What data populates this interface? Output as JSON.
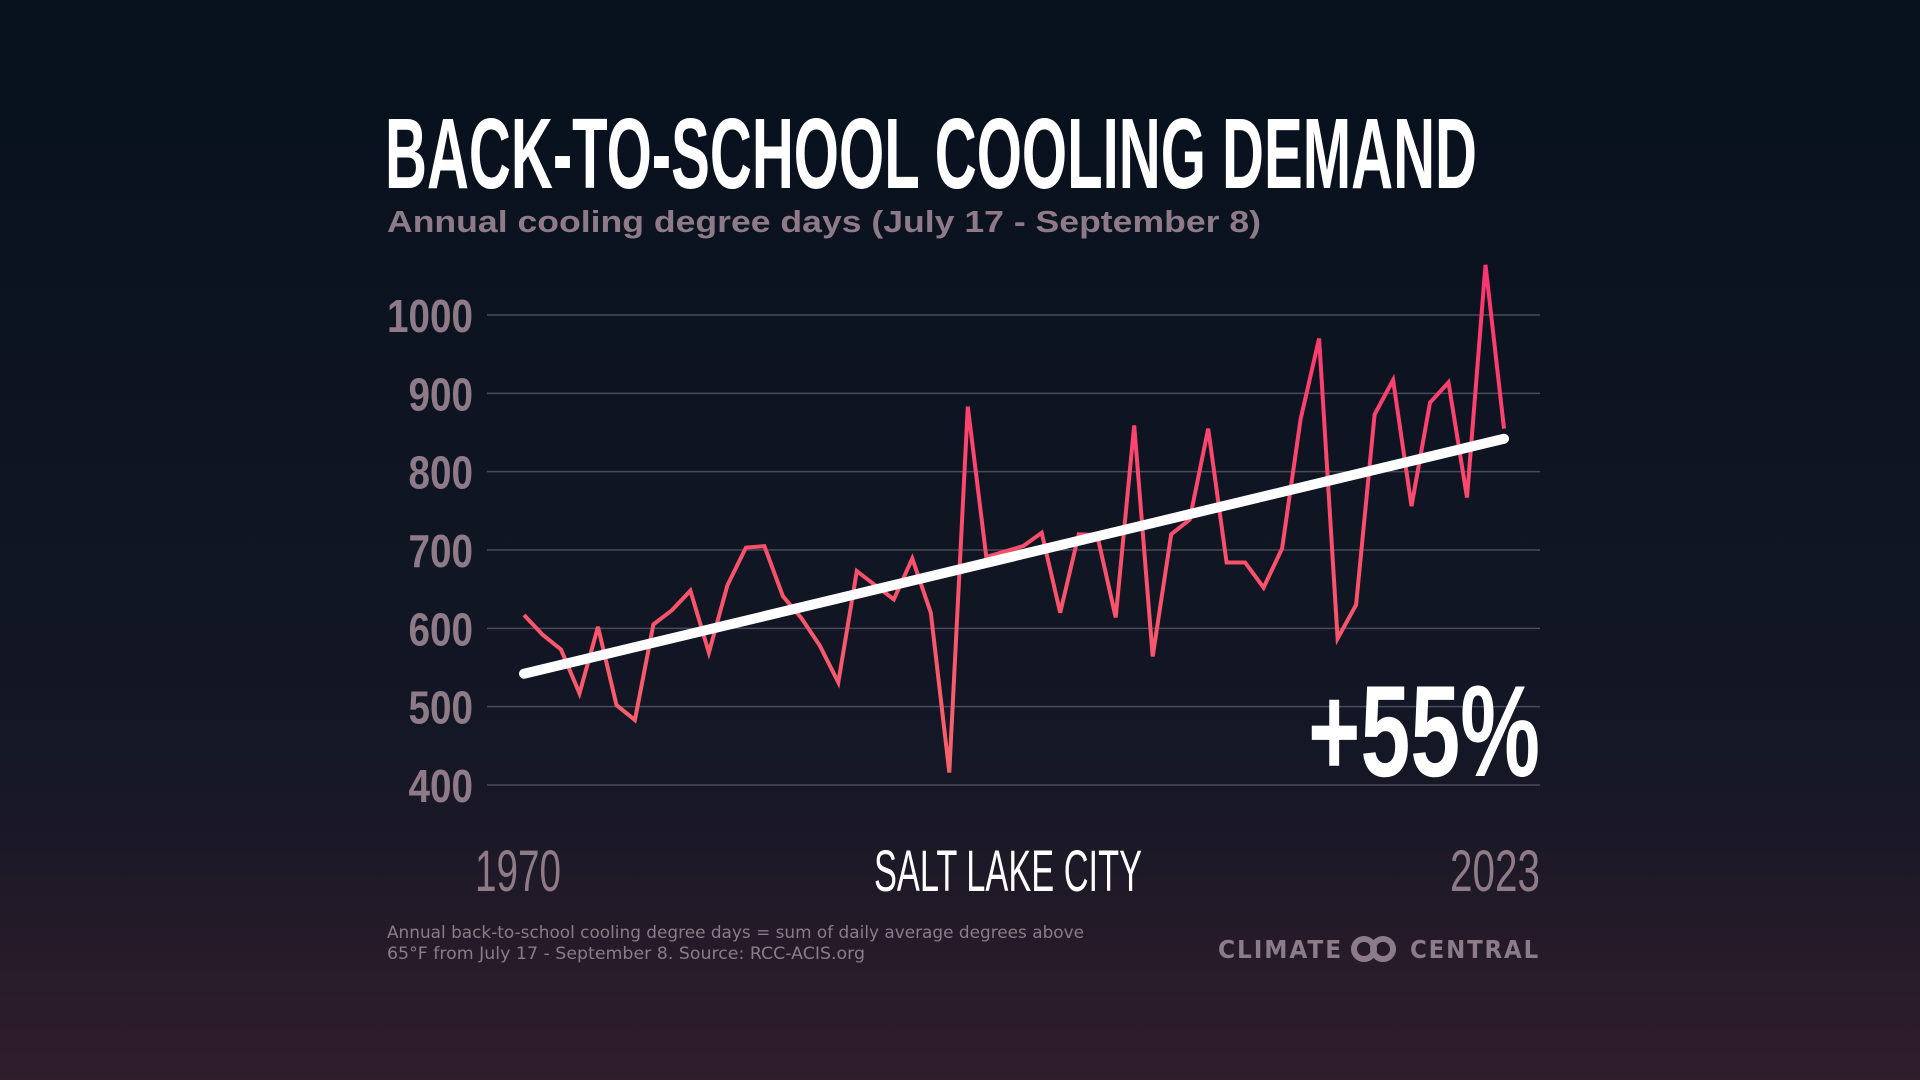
{
  "title": "BACK-TO-SCHOOL COOLING DEMAND",
  "subtitle": "Annual cooling degree days (July 17 - September 8)",
  "location": "SALT LAKE CITY",
  "change_label": "+55%",
  "footnote": {
    "line1": "Annual back-to-school cooling degree days = sum of daily average degrees above",
    "line2": "65°F from July 17 - September 8. Source: RCC-ACIS.org"
  },
  "logo": {
    "left": "CLIMATE",
    "right": "CENTRAL"
  },
  "colors": {
    "background_top": "#06111c",
    "background_bottom": "#311d2c",
    "line_top": "#ff3470",
    "line_bottom": "#f5646a",
    "trend": "#ffffff",
    "axis_text": "#8e7b87"
  },
  "chart_data": {
    "type": "line",
    "title": "BACK-TO-SCHOOL COOLING DEMAND",
    "subtitle": "Annual cooling degree days (July 17 - September 8)",
    "xlabel": "",
    "ylabel": "",
    "x_tick_labels": [
      "1970",
      "2023"
    ],
    "y_ticks": [
      1000,
      900,
      800,
      700,
      600,
      500,
      400
    ],
    "ylim": [
      400,
      1000
    ],
    "xlim": [
      1970,
      2023
    ],
    "grid": "horizontal",
    "x": [
      1970,
      1971,
      1972,
      1973,
      1974,
      1975,
      1976,
      1977,
      1978,
      1979,
      1980,
      1981,
      1982,
      1983,
      1984,
      1985,
      1986,
      1987,
      1988,
      1989,
      1990,
      1991,
      1992,
      1993,
      1994,
      1995,
      1996,
      1997,
      1998,
      1999,
      2000,
      2001,
      2002,
      2003,
      2004,
      2005,
      2006,
      2007,
      2008,
      2009,
      2010,
      2011,
      2012,
      2013,
      2014,
      2015,
      2016,
      2017,
      2018,
      2019,
      2020,
      2021,
      2022,
      2023
    ],
    "series": [
      {
        "values": [
          617,
          592,
          573,
          517,
          602,
          502,
          483,
          605,
          623,
          648,
          569,
          655,
          703,
          705,
          641,
          613,
          578,
          531,
          673,
          655,
          637,
          689,
          620,
          416,
          883,
          691,
          698,
          705,
          722,
          620,
          720,
          719,
          614,
          859,
          564,
          720,
          739,
          855,
          684,
          684,
          652,
          702,
          867,
          970,
          587,
          630,
          873,
          917,
          756,
          888,
          914,
          767,
          1064,
          855
        ]
      }
    ],
    "trend": {
      "start": [
        1970,
        542
      ],
      "end": [
        2023,
        842
      ]
    },
    "annotation": "+55%"
  }
}
